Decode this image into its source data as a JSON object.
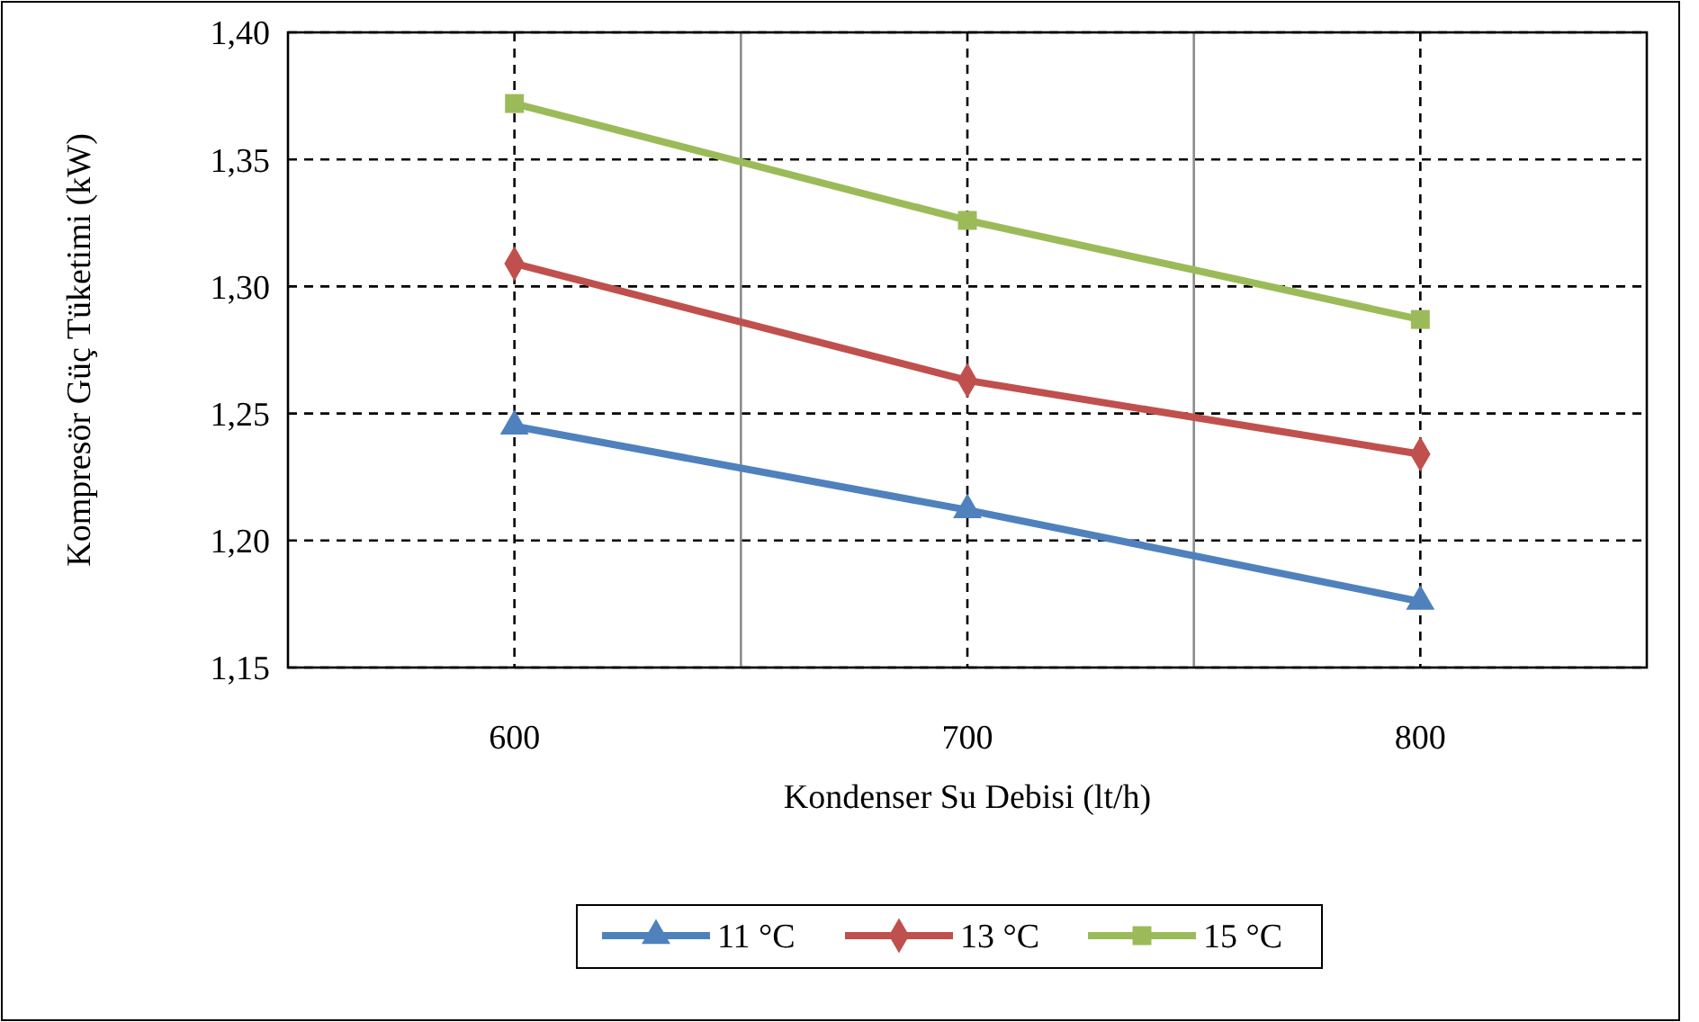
{
  "chart_data": {
    "type": "line",
    "xlabel": "Kondenser Su Debisi (lt/h)",
    "ylabel": "Kompresör Güç Tüketimi (kW)",
    "categories": [
      "600",
      "700",
      "800"
    ],
    "series": [
      {
        "name": "11 °C",
        "color": "#4f81bd",
        "values": [
          1.245,
          1.212,
          1.176
        ],
        "marker": "triangle"
      },
      {
        "name": "13 °C",
        "color": "#c0504d",
        "values": [
          1.309,
          1.263,
          1.234
        ],
        "marker": "diamond"
      },
      {
        "name": "15 °C",
        "color": "#9bbb59",
        "values": [
          1.372,
          1.326,
          1.287
        ],
        "marker": "square"
      }
    ],
    "ylim": [
      1.15,
      1.4
    ],
    "yticks": [
      {
        "value": 1.15,
        "label": "1,15"
      },
      {
        "value": 1.2,
        "label": "1,20"
      },
      {
        "value": 1.25,
        "label": "1,25"
      },
      {
        "value": 1.3,
        "label": "1,30"
      },
      {
        "value": 1.35,
        "label": "1,35"
      },
      {
        "value": 1.4,
        "label": "1,40"
      }
    ],
    "grid": true,
    "legend": "bottom",
    "line_style": "solid"
  }
}
